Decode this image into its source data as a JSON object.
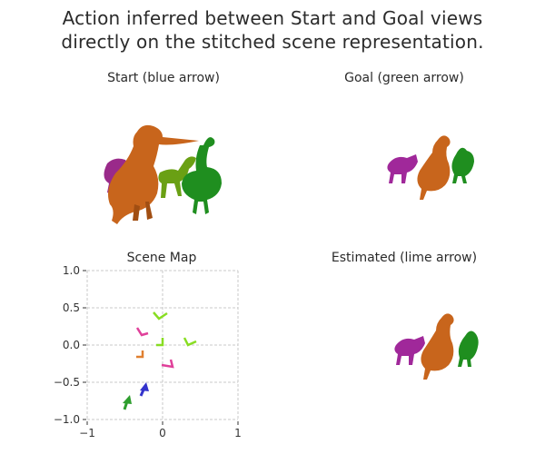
{
  "title_line1": "Action inferred between Start and Goal views",
  "title_line2": "directly on the stitched scene representation.",
  "panels": {
    "start": "Start (blue arrow)",
    "goal": "Goal (green arrow)",
    "map": "Scene Map",
    "estimated": "Estimated (lime arrow)"
  },
  "scene_map": {
    "xticks": [
      "−1",
      "0",
      "1"
    ],
    "yticks": [
      "1.0",
      "0.5",
      "0.0",
      "−0.5",
      "−1.0"
    ],
    "xlim": [
      -1,
      1
    ],
    "ylim": [
      -1,
      1
    ],
    "grid": true,
    "colors": {
      "start_arrow": "#3333cc",
      "goal_arrow": "#2e9e2e",
      "estimated_arrow": "#88dd22",
      "camera_magenta": "#e0409a",
      "camera_orange": "#e08030",
      "camera_lime": "#88dd22"
    }
  }
}
